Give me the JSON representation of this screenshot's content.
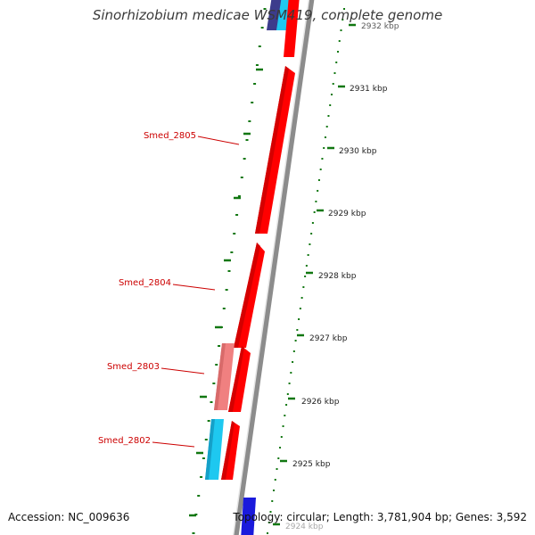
{
  "title": "Sinorhizobium medicae WSM419, complete genome",
  "footer": {
    "accession_label": "Accession: NC_009636",
    "topology_label": "Topology: circular; Length: 3,781,904 bp; Genes: 3,592"
  },
  "ticks": [
    {
      "label": "2932 kbp"
    },
    {
      "label": "2931 kbp"
    },
    {
      "label": "2930 kbp"
    },
    {
      "label": "2929 kbp"
    },
    {
      "label": "2928 kbp"
    },
    {
      "label": "2927 kbp"
    },
    {
      "label": "2926 kbp"
    },
    {
      "label": "2925 kbp"
    },
    {
      "label": "2924 kbp"
    }
  ],
  "genes": [
    {
      "name": "Smed_2805"
    },
    {
      "name": "Smed_2804"
    },
    {
      "name": "Smed_2803"
    },
    {
      "name": "Smed_2802"
    }
  ],
  "colors": {
    "cds_forward": "#ff0000",
    "cds_light": "#f08080",
    "cds_cyan": "#1ec8f0",
    "cds_blue": "#1a1adc",
    "cds_navy": "#3c3c8c",
    "backbone": "#8c8c8c",
    "gc_skew": "#117711",
    "label": "#cc0000"
  }
}
